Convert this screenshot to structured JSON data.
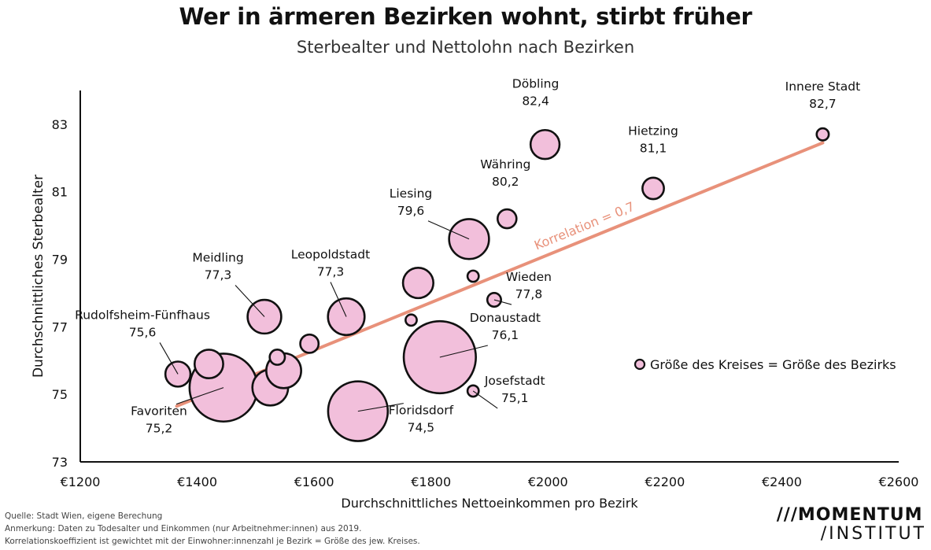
{
  "header": {
    "title": "Wer in ärmeren Bezirken wohnt, stirbt früher",
    "subtitle": "Sterbealter und Nettolohn nach Bezirken"
  },
  "footer": {
    "source": "Quelle: Stadt Wien, eigene Berechung",
    "note": "Anmerkung: Daten zu Todesalter und Einkommen (nur Arbeitnehmer:innen) aus 2019.",
    "note2": "Korrelationskoeffizient ist gewichtet mit der Einwohner:innenzahl je Bezirk = Größe des jew. Kreises."
  },
  "logo": {
    "line1": "MOMENTUM",
    "line2": "INSTITUT"
  },
  "colors": {
    "bubble_fill": "#f2bfdb",
    "bubble_stroke": "#111111",
    "trend": "#e8917a"
  },
  "chart_data": {
    "type": "scatter",
    "xlabel": "Durchschnittliches Nettoeinkommen pro Bezirk",
    "ylabel": "Durchschnittliches Sterbealter",
    "xlim": [
      1200,
      2600
    ],
    "ylim": [
      73,
      84
    ],
    "x_ticks": [
      1200,
      1400,
      1600,
      1800,
      2000,
      2200,
      2400,
      2600
    ],
    "x_tick_labels": [
      "€1200",
      "€1400",
      "€1600",
      "€1800",
      "€2000",
      "€2200",
      "€2400",
      "€2600"
    ],
    "y_ticks": [
      73,
      75,
      77,
      79,
      81,
      83
    ],
    "y_tick_labels": [
      "73",
      "75",
      "77",
      "79",
      "81",
      "83"
    ],
    "grid": false,
    "size_legend": "Größe des Kreises = Größe des Bezirks",
    "trend": {
      "label": "Korrelation = 0,7",
      "from": {
        "x": 1365,
        "y": 74.65
      },
      "to": {
        "x": 2470,
        "y": 82.45
      }
    },
    "points": [
      {
        "x": 2470,
        "y": 82.7,
        "size": 0.7,
        "name": "Innere Stadt",
        "value_label": "82,7"
      },
      {
        "x": 1995,
        "y": 82.4,
        "size": 4.0,
        "name": "Döbling",
        "value_label": "82,4"
      },
      {
        "x": 2180,
        "y": 81.1,
        "size": 2.2,
        "name": "Hietzing",
        "value_label": "81,1"
      },
      {
        "x": 1930,
        "y": 80.2,
        "size": 1.7,
        "name": "Währing",
        "value_label": "80,2"
      },
      {
        "x": 1865,
        "y": 79.6,
        "size": 7.6,
        "name": "Liesing",
        "value_label": "79,6"
      },
      {
        "x": 1515,
        "y": 77.3,
        "size": 5.4,
        "name": "Meidling",
        "value_label": "77,3"
      },
      {
        "x": 1655,
        "y": 77.3,
        "size": 6.4,
        "name": "Leopoldstadt",
        "value_label": "77,3"
      },
      {
        "x": 1908,
        "y": 77.8,
        "size": 0.9,
        "name": "Wieden",
        "value_label": "77,8"
      },
      {
        "x": 1815,
        "y": 76.1,
        "size": 24.8,
        "name": "Donaustadt",
        "value_label": "76,1"
      },
      {
        "x": 1367,
        "y": 75.6,
        "size": 3.0,
        "name": "Rudolfsheim-Fünfhaus",
        "value_label": "75,6"
      },
      {
        "x": 1872,
        "y": 75.1,
        "size": 0.6,
        "name": "Josefstadt",
        "value_label": "75,1"
      },
      {
        "x": 1445,
        "y": 75.2,
        "size": 22.0,
        "name": "Favoriten",
        "value_label": "75,2"
      },
      {
        "x": 1675,
        "y": 74.5,
        "size": 17.0,
        "name": "Floridsdorf",
        "value_label": "74,5"
      },
      {
        "x": 1778,
        "y": 78.3,
        "size": 4.4,
        "name": "",
        "value_label": ""
      },
      {
        "x": 1872,
        "y": 78.5,
        "size": 0.6,
        "name": "",
        "value_label": ""
      },
      {
        "x": 1766,
        "y": 77.2,
        "size": 0.6,
        "name": "",
        "value_label": ""
      },
      {
        "x": 1592,
        "y": 76.5,
        "size": 1.6,
        "name": "",
        "value_label": ""
      },
      {
        "x": 1537,
        "y": 76.1,
        "size": 1.1,
        "name": "",
        "value_label": ""
      },
      {
        "x": 1420,
        "y": 75.9,
        "size": 3.9,
        "name": "",
        "value_label": ""
      },
      {
        "x": 1548,
        "y": 75.7,
        "size": 5.8,
        "name": "",
        "value_label": ""
      },
      {
        "x": 1525,
        "y": 75.2,
        "size": 6.1,
        "name": "",
        "value_label": ""
      }
    ]
  }
}
